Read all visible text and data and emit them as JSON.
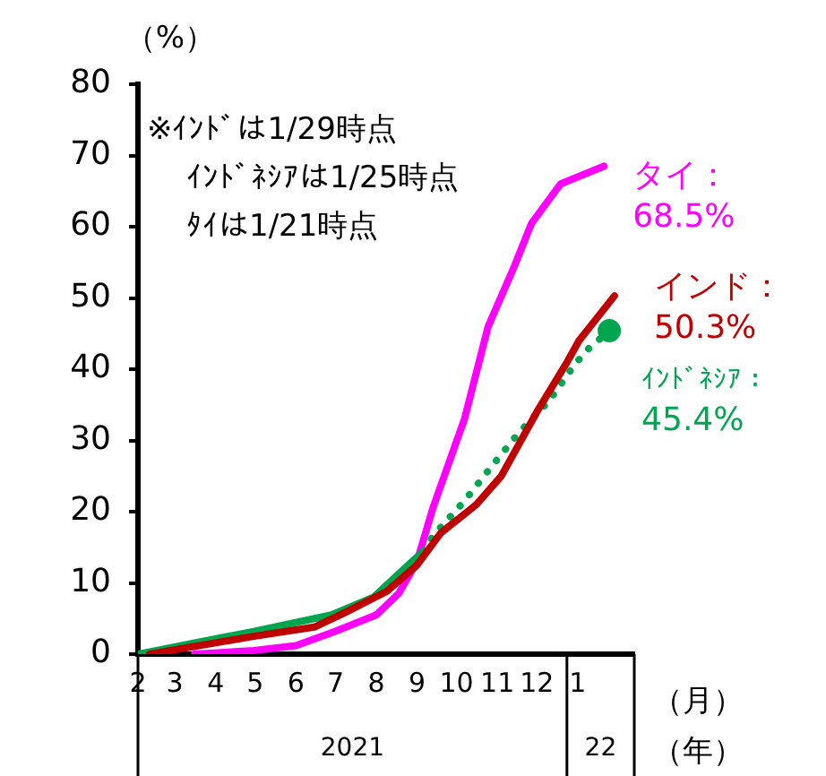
{
  "chart_data": {
    "type": "line",
    "ylabel": "（%）",
    "xlabel": "（月）",
    "xlim": [
      "2021-02-01",
      "2022-02-13"
    ],
    "xticks": [
      {
        "value": "2021-02-01",
        "label": "2"
      },
      {
        "value": "2021-03-01",
        "label": "3"
      },
      {
        "value": "2021-04-01",
        "label": "4"
      },
      {
        "value": "2021-05-01",
        "label": "5"
      },
      {
        "value": "2021-06-01",
        "label": "6"
      },
      {
        "value": "2021-07-01",
        "label": "7"
      },
      {
        "value": "2021-08-01",
        "label": "8"
      },
      {
        "value": "2021-09-01",
        "label": "9"
      },
      {
        "value": "2021-10-01",
        "label": "10"
      },
      {
        "value": "2021-11-01",
        "label": "11"
      },
      {
        "value": "2021-12-01",
        "label": "12"
      },
      {
        "value": "2022-01-01",
        "label": "1"
      }
    ],
    "ylim": [
      0,
      80
    ],
    "yticks": [
      0,
      10,
      20,
      30,
      40,
      50,
      60,
      70,
      80
    ],
    "grid": false,
    "legend": false,
    "series": [
      {
        "name": "タイ：",
        "color": "#ff00ff",
        "line_style": "solid",
        "x": [
          "2021-03-16",
          "2021-04-30",
          "2021-06-01",
          "2021-07-01",
          "2021-08-01",
          "2021-08-18",
          "2021-09-01",
          "2021-09-13",
          "2021-10-07",
          "2021-10-25",
          "2021-11-14",
          "2021-11-27",
          "2021-12-19",
          "2022-01-21"
        ],
        "values": [
          0,
          0.5,
          1.2,
          3.2,
          5.5,
          8.5,
          13,
          20.5,
          33,
          46,
          54.5,
          60.5,
          66,
          68.5
        ],
        "value_labels": [
          null,
          null,
          null,
          null,
          null,
          null,
          null,
          null,
          null,
          null,
          null,
          null,
          null,
          "68.5%"
        ]
      },
      {
        "name": "インド：",
        "color": "#c00000",
        "line_style": "solid",
        "x": [
          "2021-02-10",
          "2021-04-30",
          "2021-06-15",
          "2021-07-07",
          "2021-08-09",
          "2021-09-01",
          "2021-09-19",
          "2021-10-16",
          "2021-11-04",
          "2021-12-01",
          "2021-12-24",
          "2022-01-02",
          "2022-01-29"
        ],
        "values": [
          0,
          2.5,
          3.8,
          5.7,
          8.8,
          12.5,
          17,
          21,
          25,
          34,
          41,
          44,
          50.3
        ],
        "value_labels": [
          null,
          null,
          null,
          null,
          null,
          null,
          null,
          null,
          null,
          null,
          null,
          null,
          "50.3%"
        ]
      },
      {
        "color": "#00a550",
        "line_style": "solid",
        "x": [
          "2021-02-01",
          "2021-04-30",
          "2021-06-28",
          "2021-07-30",
          "2021-09-06"
        ],
        "values": [
          0,
          3.2,
          5.5,
          8,
          14.5
        ]
      },
      {
        "name": "ｲﾝﾄﾞﾈｼｱ：",
        "color": "#00a550",
        "line_style": "dotted",
        "x": [
          "2021-09-06",
          "2021-09-14",
          "2021-10-07",
          "2021-10-27",
          "2021-11-17",
          "2021-12-10",
          "2021-12-28",
          "2022-01-07",
          "2022-01-25"
        ],
        "values": [
          14.5,
          16.8,
          21.5,
          26.2,
          31,
          35.5,
          40.2,
          42.5,
          45.4
        ],
        "value_labels": [
          null,
          null,
          null,
          null,
          null,
          null,
          null,
          null,
          "45.4%"
        ]
      },
      {
        "type": "scatter",
        "color": "#00a550",
        "marker": "circle",
        "x": [
          "2022-01-25"
        ],
        "values": [
          45.4
        ]
      }
    ],
    "annotations": [
      "※ｲﾝﾄﾞは1/29時点",
      "ｲﾝﾄﾞﾈｼｱは1/25時点",
      "ﾀｲは1/21時点",
      "2021",
      "22",
      "（年）"
    ]
  }
}
